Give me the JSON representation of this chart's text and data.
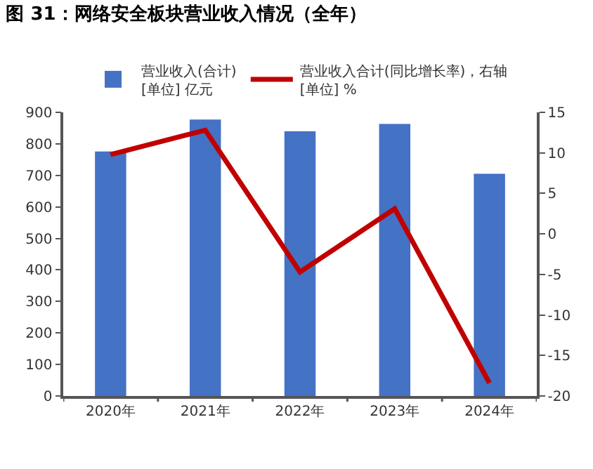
{
  "chart_data": {
    "type": "bar",
    "title": "图 31：网络安全板块营业收入情况（全年）",
    "categories": [
      "2020年",
      "2021年",
      "2022年",
      "2023年",
      "2024年"
    ],
    "series": [
      {
        "name": "营业收入(合计)\n[单位] 亿元",
        "color": "#4472c4",
        "values": [
          776,
          877,
          840,
          863,
          705
        ]
      },
      {
        "name": "营业收入合计(同比增长率)，右轴\n[单位] %",
        "color": "#c00000",
        "type": "line",
        "axis": "y2",
        "values": [
          9.8,
          12.8,
          -4.7,
          3.1,
          -18.4
        ]
      }
    ],
    "ylim": [
      0,
      900
    ],
    "yticks": [
      0,
      100,
      200,
      300,
      400,
      500,
      600,
      700,
      800,
      900
    ],
    "y2lim": [
      -20,
      15
    ],
    "y2ticks": [
      -20,
      -15,
      -10,
      -5,
      0,
      5,
      10,
      15
    ],
    "grid": false,
    "legend": "top",
    "marker": "none",
    "line_style": "solid"
  }
}
